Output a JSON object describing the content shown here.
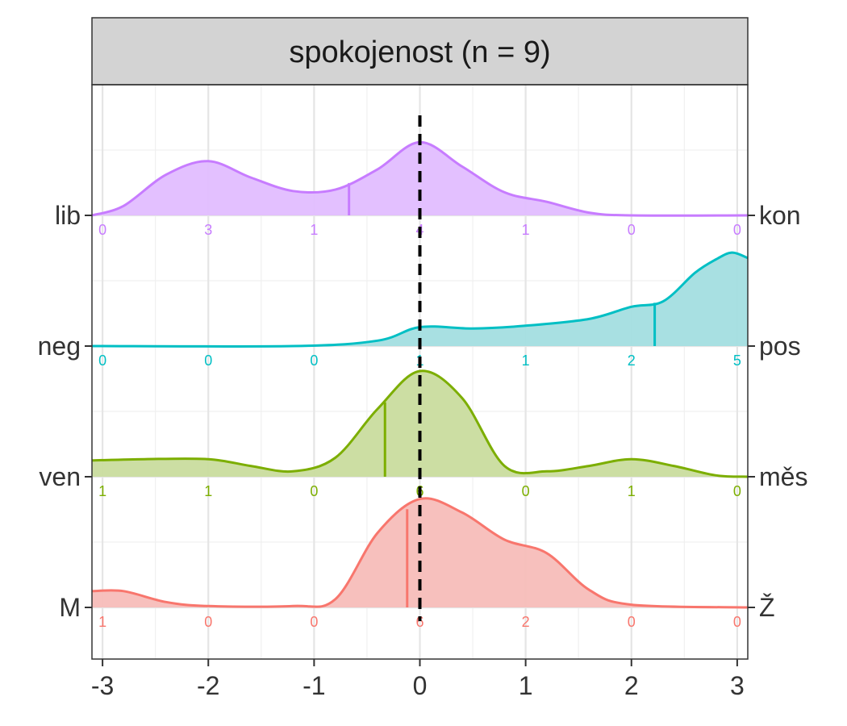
{
  "chart_data": {
    "type": "ridgeline",
    "title": "spokojenost (n = 9)",
    "xlim": [
      -3.1,
      3.1
    ],
    "x_ticks": [
      -3,
      -2,
      -1,
      0,
      1,
      2,
      3
    ],
    "x_tick_labels": [
      "-3",
      "-2",
      "-1",
      "0",
      "1",
      "2",
      "3"
    ],
    "reference_x": 0,
    "grid": true,
    "legend": "none",
    "series": [
      {
        "name": "lib / kon",
        "left_label": "lib",
        "right_label": "kon",
        "color": "#C77CFF",
        "fill": "#E1BDFF",
        "mean": -0.67,
        "counts": [
          0,
          3,
          1,
          4,
          1,
          0,
          0
        ],
        "density": [
          [
            -3.1,
            0.0
          ],
          [
            -2.8,
            0.07
          ],
          [
            -2.4,
            0.3
          ],
          [
            -2.0,
            0.4
          ],
          [
            -1.6,
            0.28
          ],
          [
            -1.2,
            0.18
          ],
          [
            -0.8,
            0.19
          ],
          [
            -0.4,
            0.34
          ],
          [
            0.0,
            0.54
          ],
          [
            0.4,
            0.36
          ],
          [
            0.8,
            0.17
          ],
          [
            1.2,
            0.1
          ],
          [
            1.6,
            0.02
          ],
          [
            2.0,
            0.0
          ],
          [
            3.1,
            0.0
          ]
        ]
      },
      {
        "name": "neg / pos",
        "left_label": "neg",
        "right_label": "pos",
        "color": "#00BFC4",
        "fill": "#A3DEE0",
        "mean": 2.22,
        "counts": [
          0,
          0,
          0,
          1,
          1,
          2,
          5
        ],
        "density": [
          [
            -3.1,
            0.0
          ],
          [
            -1.2,
            0.0
          ],
          [
            -0.4,
            0.04
          ],
          [
            0.0,
            0.14
          ],
          [
            0.5,
            0.13
          ],
          [
            1.0,
            0.15
          ],
          [
            1.6,
            0.2
          ],
          [
            2.0,
            0.29
          ],
          [
            2.3,
            0.33
          ],
          [
            2.6,
            0.54
          ],
          [
            2.8,
            0.64
          ],
          [
            2.95,
            0.69
          ],
          [
            3.1,
            0.65
          ]
        ]
      },
      {
        "name": "ven / měs",
        "left_label": "ven",
        "right_label": "měs",
        "color": "#7CAE00",
        "fill": "#C9DC9E",
        "mean": -0.33,
        "counts": [
          1,
          1,
          0,
          6,
          0,
          1,
          0
        ],
        "density": [
          [
            -3.1,
            0.12
          ],
          [
            -2.6,
            0.13
          ],
          [
            -2.0,
            0.13
          ],
          [
            -1.6,
            0.08
          ],
          [
            -1.2,
            0.04
          ],
          [
            -0.8,
            0.14
          ],
          [
            -0.4,
            0.5
          ],
          [
            0.0,
            0.78
          ],
          [
            0.4,
            0.58
          ],
          [
            0.8,
            0.08
          ],
          [
            1.2,
            0.04
          ],
          [
            1.6,
            0.08
          ],
          [
            2.0,
            0.13
          ],
          [
            2.4,
            0.08
          ],
          [
            2.8,
            0.01
          ],
          [
            3.1,
            0.0
          ]
        ]
      },
      {
        "name": "M / Ž",
        "left_label": "M",
        "right_label": "Ž",
        "color": "#F8766D",
        "fill": "#F7BDB9",
        "mean": -0.12,
        "counts": [
          1,
          0,
          0,
          6,
          2,
          0,
          0
        ],
        "density": [
          [
            -3.1,
            0.12
          ],
          [
            -2.8,
            0.12
          ],
          [
            -2.4,
            0.04
          ],
          [
            -2.0,
            0.01
          ],
          [
            -1.2,
            0.01
          ],
          [
            -0.8,
            0.06
          ],
          [
            -0.4,
            0.55
          ],
          [
            0.0,
            0.8
          ],
          [
            0.4,
            0.7
          ],
          [
            0.8,
            0.5
          ],
          [
            1.2,
            0.4
          ],
          [
            1.6,
            0.13
          ],
          [
            2.0,
            0.02
          ],
          [
            3.1,
            0.0
          ]
        ]
      }
    ]
  }
}
